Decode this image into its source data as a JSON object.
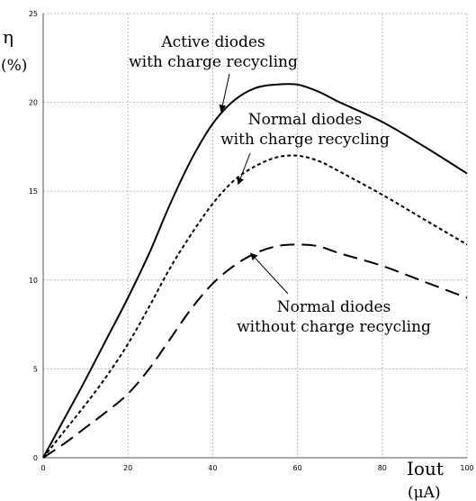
{
  "chart_data": {
    "type": "line",
    "ylabel_symbol": "η",
    "ylabel_unit": "(%)",
    "xlabel": "Iout",
    "xlabel_unit": "(μA)",
    "xlim": [
      0,
      100
    ],
    "ylim": [
      0,
      25
    ],
    "x_ticks": [
      "0",
      "20",
      "40",
      "60",
      "80",
      "100"
    ],
    "y_ticks": [
      "0",
      "5",
      "10",
      "15",
      "20",
      "25"
    ],
    "grid": true,
    "series": [
      {
        "name": "Active diodes with charge recycling",
        "style": "solid",
        "points": [
          [
            0,
            0
          ],
          [
            5,
            2.2
          ],
          [
            10,
            4.4
          ],
          [
            15,
            6.7
          ],
          [
            20,
            9.0
          ],
          [
            25,
            11.5
          ],
          [
            30,
            14.3
          ],
          [
            35,
            16.8
          ],
          [
            40,
            18.8
          ],
          [
            45,
            20.1
          ],
          [
            50,
            20.8
          ],
          [
            55,
            21.0
          ],
          [
            60,
            21.0
          ],
          [
            65,
            20.6
          ],
          [
            70,
            20.0
          ],
          [
            80,
            18.9
          ],
          [
            90,
            17.5
          ],
          [
            100,
            16.0
          ]
        ]
      },
      {
        "name": "Normal diodes with charge recycling",
        "style": "dotted",
        "points": [
          [
            0,
            0
          ],
          [
            5,
            1.5
          ],
          [
            10,
            3.0
          ],
          [
            15,
            4.6
          ],
          [
            20,
            6.4
          ],
          [
            25,
            8.5
          ],
          [
            30,
            10.7
          ],
          [
            35,
            12.6
          ],
          [
            40,
            14.3
          ],
          [
            45,
            15.6
          ],
          [
            50,
            16.4
          ],
          [
            55,
            16.9
          ],
          [
            60,
            17.0
          ],
          [
            65,
            16.7
          ],
          [
            70,
            16.1
          ],
          [
            80,
            14.8
          ],
          [
            90,
            13.4
          ],
          [
            100,
            12.0
          ]
        ]
      },
      {
        "name": "Normal diodes without charge recycling",
        "style": "dashed",
        "points": [
          [
            0,
            0
          ],
          [
            5,
            0.8
          ],
          [
            10,
            1.7
          ],
          [
            15,
            2.6
          ],
          [
            20,
            3.6
          ],
          [
            25,
            5.0
          ],
          [
            30,
            6.7
          ],
          [
            35,
            8.4
          ],
          [
            40,
            9.8
          ],
          [
            45,
            10.8
          ],
          [
            50,
            11.5
          ],
          [
            55,
            11.9
          ],
          [
            60,
            12.0
          ],
          [
            65,
            11.9
          ],
          [
            70,
            11.5
          ],
          [
            80,
            10.8
          ],
          [
            90,
            9.9
          ],
          [
            100,
            9.0
          ]
        ]
      }
    ],
    "annotations": [
      {
        "lines": [
          "Active diodes",
          "with charge recycling"
        ],
        "arrow_to": [
          42,
          19.5
        ]
      },
      {
        "lines": [
          "Normal diodes",
          "with charge recycling"
        ],
        "arrow_to": [
          46,
          15.4
        ]
      },
      {
        "lines": [
          "Normal diodes",
          "without charge recycling"
        ],
        "arrow_to": [
          49,
          11.5
        ]
      }
    ]
  }
}
